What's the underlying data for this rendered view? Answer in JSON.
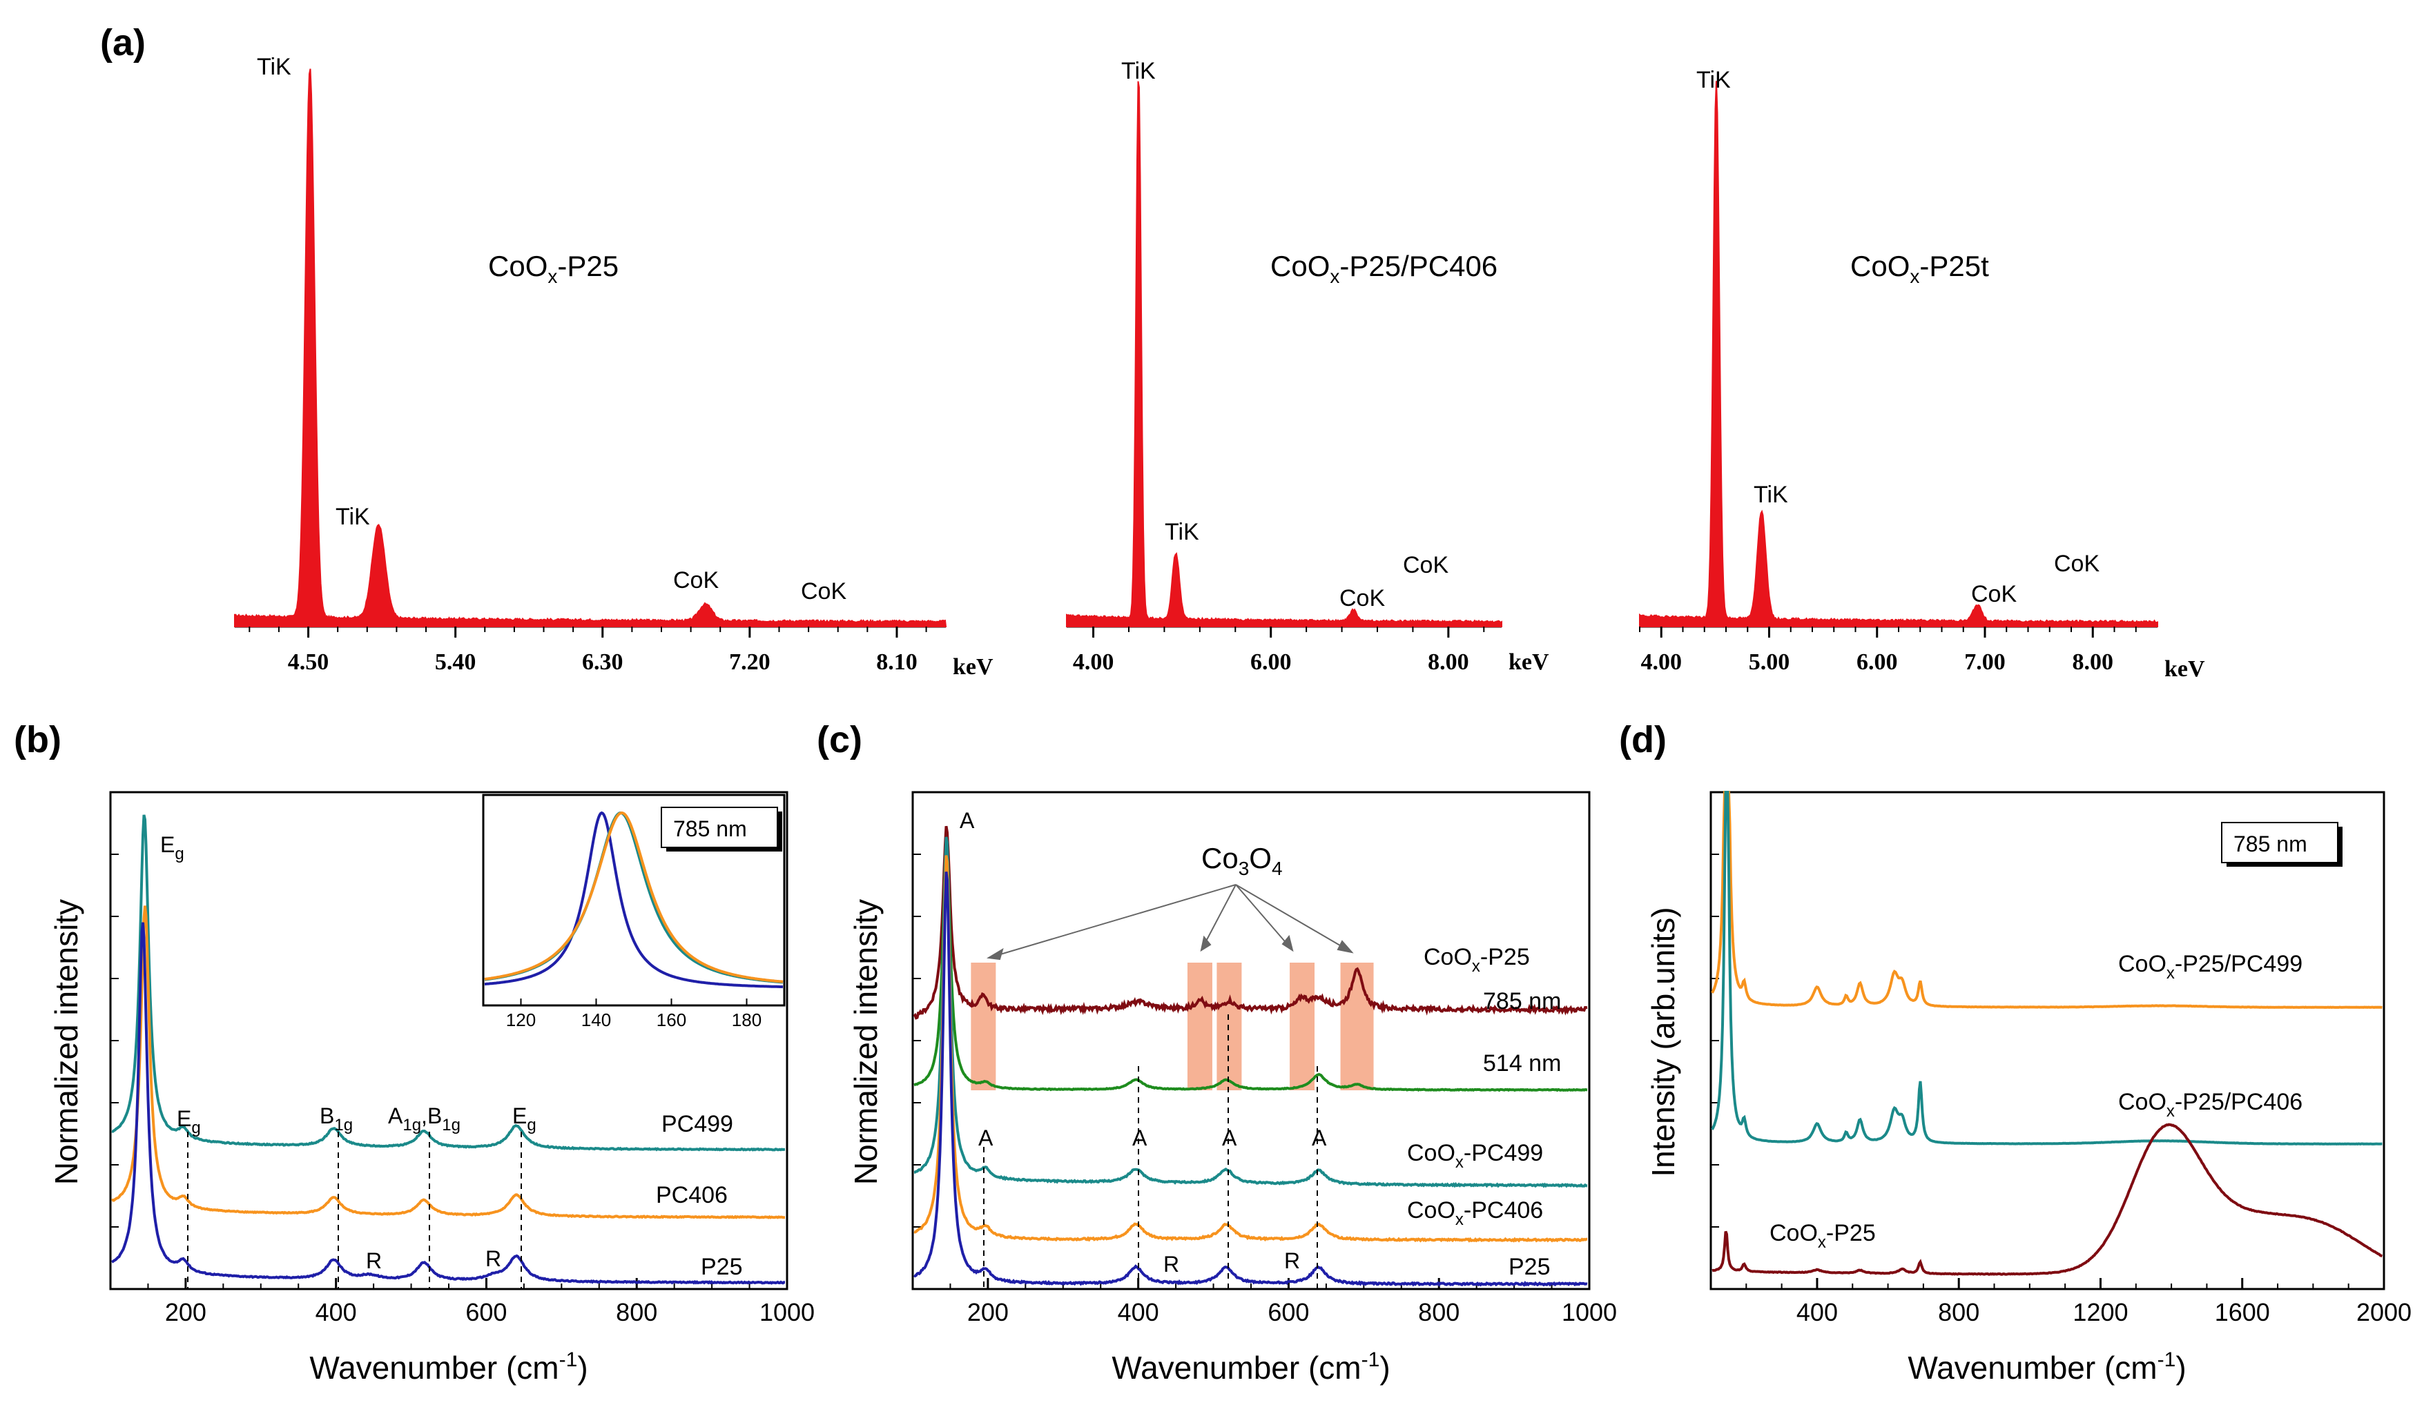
{
  "colors": {
    "eds_red": "#e8141c",
    "teal": "#1b8a8a",
    "orange": "#f7931e",
    "navy": "#1f1fa8",
    "darkred": "#7f0c12",
    "green": "#1e8c1e",
    "highlight": "#f4a582"
  },
  "panels": {
    "a": "(a)",
    "b": "(b)",
    "c": "(c)",
    "d": "(d)"
  },
  "chart_data": [
    {
      "id": "a1",
      "type": "area",
      "title": "CoOx-P25",
      "title_main": "CoO",
      "title_sub": "x",
      "title_rest": "-P25",
      "xlabel": "keV",
      "xlim": [
        4.05,
        8.4
      ],
      "ticks": [
        4.5,
        5.4,
        6.3,
        7.2,
        8.1
      ],
      "tick_labels": [
        "4.50",
        "5.40",
        "6.30",
        "7.20",
        "8.10"
      ],
      "peaks": [
        {
          "label": "TiK",
          "x": 4.51,
          "height": 1.0
        },
        {
          "label": "TiK",
          "x": 4.93,
          "height": 0.17
        },
        {
          "label": "CoK",
          "x": 6.93,
          "height": 0.03
        },
        {
          "label": "CoK",
          "x": 7.65,
          "height": 0.0
        }
      ]
    },
    {
      "id": "a2",
      "type": "area",
      "title": "CoOx-P25/PC406",
      "title_main": "CoO",
      "title_sub": "x",
      "title_rest": "-P25/PC406",
      "xlabel": "keV",
      "xlim": [
        3.7,
        8.6
      ],
      "ticks": [
        4.0,
        6.0,
        8.0
      ],
      "tick_labels": [
        "4.00",
        "6.00",
        "8.00"
      ],
      "peaks": [
        {
          "label": "TiK",
          "x": 4.51,
          "height": 1.0
        },
        {
          "label": "TiK",
          "x": 4.93,
          "height": 0.12
        },
        {
          "label": "CoK",
          "x": 6.93,
          "height": 0.02
        },
        {
          "label": "CoK",
          "x": 7.65,
          "height": 0.0
        }
      ]
    },
    {
      "id": "a3",
      "type": "area",
      "title": "CoOx-P25t",
      "title_main": "CoO",
      "title_sub": "x",
      "title_rest": "-P25t",
      "xlabel": "keV",
      "xlim": [
        3.8,
        8.6
      ],
      "ticks": [
        4.0,
        5.0,
        6.0,
        7.0,
        8.0
      ],
      "tick_labels": [
        "4.00",
        "5.00",
        "6.00",
        "7.00",
        "8.00"
      ],
      "peaks": [
        {
          "label": "TiK",
          "x": 4.51,
          "height": 1.0
        },
        {
          "label": "TiK",
          "x": 4.93,
          "height": 0.2
        },
        {
          "label": "CoK",
          "x": 6.93,
          "height": 0.03
        },
        {
          "label": "CoK",
          "x": 7.65,
          "height": 0.0
        }
      ]
    },
    {
      "id": "b",
      "type": "line",
      "xlabel": "Wavenumber (cm-1)",
      "ylabel": "Normalized intensity",
      "xlim": [
        100,
        1000
      ],
      "xticks": [
        200,
        400,
        600,
        800,
        1000
      ],
      "laser_box": "785 nm",
      "series": [
        {
          "name": "PC499",
          "color": "teal",
          "offset": 0.3,
          "main_peak": 145,
          "main_height": 0.65
        },
        {
          "name": "PC406",
          "color": "orange",
          "offset": 0.15,
          "main_peak": 146,
          "main_height": 0.62
        },
        {
          "name": "P25",
          "color": "navy",
          "offset": 0.0,
          "main_peak": 143,
          "main_height": 0.55
        }
      ],
      "peak_labels": [
        {
          "text": "E",
          "sub": "g",
          "x": 150
        },
        {
          "text": "E",
          "sub": "g",
          "x": 197
        },
        {
          "text": "B",
          "sub": "1g",
          "x": 397
        },
        {
          "text": "A",
          "sub": "1g",
          "text2": ",B",
          "sub2": "1g",
          "x": 519
        },
        {
          "text": "E",
          "sub": "g",
          "x": 640
        },
        {
          "text": "R",
          "sub": "",
          "x": 445
        },
        {
          "text": "R",
          "sub": "",
          "x": 610
        }
      ],
      "inset": {
        "xlim": [
          110,
          190
        ],
        "xticks": [
          120,
          140,
          160,
          180
        ]
      }
    },
    {
      "id": "c",
      "type": "line",
      "xlabel": "Wavenumber (cm-1)",
      "ylabel": "Normalized intensity",
      "xlim": [
        100,
        1000
      ],
      "xticks": [
        200,
        400,
        600,
        800,
        1000
      ],
      "annotation": "Co3O4",
      "annotation_main": "Co",
      "annotation_sub1": "3",
      "annotation_mid": "O",
      "annotation_sub2": "4",
      "co3o4_bands": [
        194,
        482,
        521,
        618,
        691
      ],
      "series": [
        {
          "name": "CoOx-P25",
          "name_main": "CoO",
          "name_sub": "x",
          "name_rest": "-P25",
          "laser": "785 nm",
          "color": "darkred"
        },
        {
          "name": "CoOx-P25",
          "laser": "514 nm",
          "color": "green"
        },
        {
          "name": "CoOx-PC499",
          "name_main": "CoO",
          "name_sub": "x",
          "name_rest": "-PC499",
          "color": "teal"
        },
        {
          "name": "CoOx-PC406",
          "name_main": "CoO",
          "name_sub": "x",
          "name_rest": "-PC406",
          "color": "orange"
        },
        {
          "name": "P25",
          "color": "navy"
        }
      ],
      "peak_labels": [
        "A",
        "A",
        "A",
        "A",
        "A",
        "R",
        "R"
      ],
      "laser_labels": [
        "785 nm",
        "514 nm"
      ]
    },
    {
      "id": "d",
      "type": "line",
      "xlabel": "Wavenumber (cm-1)",
      "ylabel": "Intensity (arb.units)",
      "xlim": [
        100,
        2000
      ],
      "xticks": [
        400,
        800,
        1200,
        1600,
        2000
      ],
      "laser_box": "785 nm",
      "series": [
        {
          "name": "CoOx-P25/PC499",
          "name_main": "CoO",
          "name_sub": "x",
          "name_rest": "-P25/PC499",
          "color": "orange"
        },
        {
          "name": "CoOx-P25/PC406",
          "name_main": "CoO",
          "name_sub": "x",
          "name_rest": "-P25/PC406",
          "color": "teal"
        },
        {
          "name": "CoOx-P25",
          "name_main": "CoO",
          "name_sub": "x",
          "name_rest": "-P25",
          "color": "darkred"
        }
      ]
    }
  ],
  "text": {
    "tick_200": "200",
    "tick_400": "400",
    "tick_600": "600",
    "tick_800": "800",
    "tick_1000": "1000",
    "tick_1200": "1200",
    "tick_1600": "1600",
    "tick_2000": "2000",
    "inset_120": "120",
    "inset_140": "140",
    "inset_160": "160",
    "inset_180": "180",
    "tik": "TiK",
    "cok": "CoK",
    "kev": "keV",
    "wavenumber": "Wavenumber (cm",
    "wavenumber_sup": "-1",
    "wavenumber_close": ")",
    "ylabel_b": "Normalized intensity",
    "ylabel_c": "Normalized intensity",
    "ylabel_d": "Intensity (arb.units)",
    "laser_785": "785 nm",
    "laser_514": "514 nm",
    "label_A": "A",
    "label_R": "R",
    "label_E": "E",
    "label_g": "g",
    "label_B": "B",
    "label_1g": "1g",
    "label_A1g_B": ",B",
    "pc499": "PC499",
    "pc406": "PC406",
    "p25": "P25",
    "x_sub": "x"
  }
}
